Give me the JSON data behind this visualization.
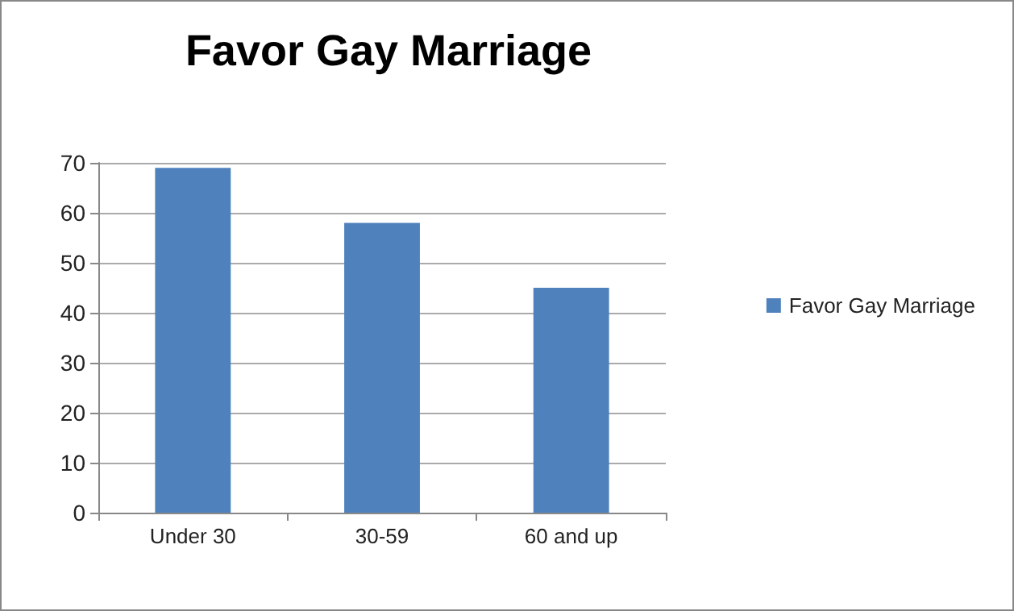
{
  "chart_data": {
    "type": "bar",
    "title": "Favor Gay Marriage",
    "categories": [
      "Under 30",
      "30-59",
      "60 and up"
    ],
    "series": [
      {
        "name": "Favor Gay Marriage",
        "color": "#4f81bd",
        "values": [
          69,
          58,
          45
        ]
      }
    ],
    "ylim": [
      0,
      70
    ],
    "yticks": [
      0,
      10,
      20,
      30,
      40,
      50,
      60,
      70
    ],
    "grid": "y",
    "legend": "right"
  }
}
